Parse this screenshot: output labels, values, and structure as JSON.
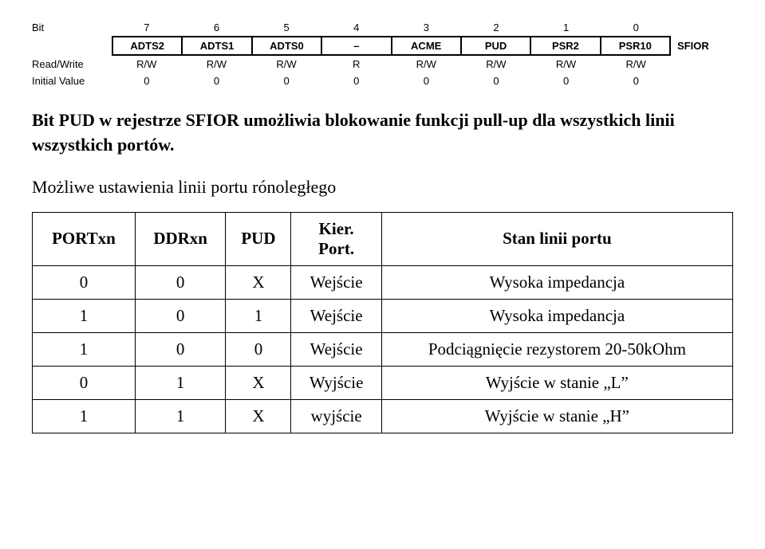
{
  "register": {
    "left_labels": [
      "Bit",
      "",
      "Read/Write",
      "Initial Value"
    ],
    "right_labels": [
      "",
      "SFIOR",
      "",
      ""
    ],
    "bit_numbers": [
      "7",
      "6",
      "5",
      "4",
      "3",
      "2",
      "1",
      "0"
    ],
    "bit_names": [
      "ADTS2",
      "ADTS1",
      "ADTS0",
      "–",
      "ACME",
      "PUD",
      "PSR2",
      "PSR10"
    ],
    "rw": [
      "R/W",
      "R/W",
      "R/W",
      "R",
      "R/W",
      "R/W",
      "R/W",
      "R/W"
    ],
    "initial": [
      "0",
      "0",
      "0",
      "0",
      "0",
      "0",
      "0",
      "0"
    ]
  },
  "paragraph": "Bit PUD w rejestrze SFIOR umożliwia blokowanie funkcji pull-up dla wszystkich linii wszystkich portów.",
  "subheader": "Możliwe ustawienia linii portu rónoległego",
  "table": {
    "headers": {
      "c1": "PORTxn",
      "c2": "DDRxn",
      "c3": "PUD",
      "c4a": "Kier.",
      "c4b": "Port.",
      "c5": "Stan linii portu"
    },
    "rows": [
      {
        "c1": "0",
        "c2": "0",
        "c3": "X",
        "c4": "Wejście",
        "c5": "Wysoka impedancja"
      },
      {
        "c1": "1",
        "c2": "0",
        "c3": "1",
        "c4": "Wejście",
        "c5": "Wysoka impedancja"
      },
      {
        "c1": "1",
        "c2": "0",
        "c3": "0",
        "c4": "Wejście",
        "c5": "Podciągnięcie rezystorem 20-50kOhm"
      },
      {
        "c1": "0",
        "c2": "1",
        "c3": "X",
        "c4": "Wyjście",
        "c5": "Wyjście w stanie „L”"
      },
      {
        "c1": "1",
        "c2": "1",
        "c3": "X",
        "c4": "wyjście",
        "c5": "Wyjście w stanie „H”"
      }
    ]
  }
}
